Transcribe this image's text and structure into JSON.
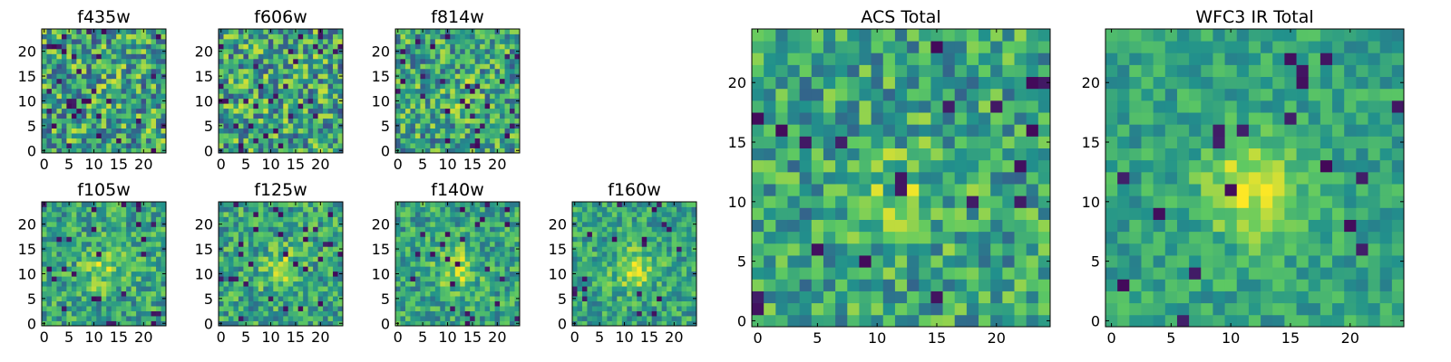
{
  "colormap": [
    "#440154",
    "#3b528b",
    "#21918c",
    "#5ec962",
    "#fde725"
  ],
  "chart_data": [
    {
      "type": "heatmap",
      "title": "f435w",
      "xlim": [
        0,
        24
      ],
      "ylim": [
        0,
        24
      ],
      "grid_size": 25,
      "xticks": [
        "0",
        "5",
        "10",
        "15",
        "20"
      ],
      "yticks": [
        "0",
        "5",
        "10",
        "15",
        "20"
      ],
      "seed": 11,
      "center_strength": 0.05,
      "noise": 1.0,
      "dark_fraction": 0.05
    },
    {
      "type": "heatmap",
      "title": "f606w",
      "xlim": [
        0,
        24
      ],
      "ylim": [
        0,
        24
      ],
      "grid_size": 25,
      "xticks": [
        "0",
        "5",
        "10",
        "15",
        "20"
      ],
      "yticks": [
        "0",
        "5",
        "10",
        "15",
        "20"
      ],
      "seed": 23,
      "center_strength": 0.05,
      "noise": 1.0,
      "dark_fraction": 0.05
    },
    {
      "type": "heatmap",
      "title": "f814w",
      "xlim": [
        0,
        24
      ],
      "ylim": [
        0,
        24
      ],
      "grid_size": 25,
      "xticks": [
        "0",
        "5",
        "10",
        "15",
        "20"
      ],
      "yticks": [
        "0",
        "5",
        "10",
        "15",
        "20"
      ],
      "seed": 37,
      "center_strength": 0.25,
      "noise": 0.9,
      "dark_fraction": 0.04
    },
    {
      "type": "heatmap",
      "title": "f105w",
      "xlim": [
        0,
        24
      ],
      "ylim": [
        0,
        24
      ],
      "grid_size": 25,
      "xticks": [
        "0",
        "5",
        "10",
        "15",
        "20"
      ],
      "yticks": [
        "0",
        "5",
        "10",
        "15",
        "20"
      ],
      "seed": 41,
      "center_strength": 0.55,
      "noise": 0.7,
      "dark_fraction": 0.04
    },
    {
      "type": "heatmap",
      "title": "f125w",
      "xlim": [
        0,
        24
      ],
      "ylim": [
        0,
        24
      ],
      "grid_size": 25,
      "xticks": [
        "0",
        "5",
        "10",
        "15",
        "20"
      ],
      "yticks": [
        "0",
        "5",
        "10",
        "15",
        "20"
      ],
      "seed": 53,
      "center_strength": 0.5,
      "noise": 0.7,
      "dark_fraction": 0.04
    },
    {
      "type": "heatmap",
      "title": "f140w",
      "xlim": [
        0,
        24
      ],
      "ylim": [
        0,
        24
      ],
      "grid_size": 25,
      "xticks": [
        "0",
        "5",
        "10",
        "15",
        "20"
      ],
      "yticks": [
        "0",
        "5",
        "10",
        "15",
        "20"
      ],
      "seed": 67,
      "center_strength": 0.6,
      "noise": 0.65,
      "dark_fraction": 0.04
    },
    {
      "type": "heatmap",
      "title": "f160w",
      "xlim": [
        0,
        24
      ],
      "ylim": [
        0,
        24
      ],
      "grid_size": 25,
      "xticks": [
        "0",
        "5",
        "10",
        "15",
        "20"
      ],
      "yticks": [
        "0",
        "5",
        "10",
        "15",
        "20"
      ],
      "seed": 79,
      "center_strength": 0.65,
      "noise": 0.6,
      "dark_fraction": 0.03
    },
    {
      "type": "heatmap",
      "title": "ACS Total",
      "xlim": [
        0,
        24
      ],
      "ylim": [
        0,
        24
      ],
      "grid_size": 25,
      "xticks": [
        "0",
        "5",
        "10",
        "15",
        "20"
      ],
      "yticks": [
        "0",
        "5",
        "10",
        "15",
        "20"
      ],
      "seed": 83,
      "center_strength": 0.35,
      "noise": 0.75,
      "dark_fraction": 0.03
    },
    {
      "type": "heatmap",
      "title": "WFC3 IR Total",
      "xlim": [
        0,
        24
      ],
      "ylim": [
        0,
        24
      ],
      "grid_size": 25,
      "xticks": [
        "0",
        "5",
        "10",
        "15",
        "20"
      ],
      "yticks": [
        "0",
        "5",
        "10",
        "15",
        "20"
      ],
      "seed": 97,
      "center_strength": 0.85,
      "noise": 0.45,
      "dark_fraction": 0.03
    }
  ]
}
